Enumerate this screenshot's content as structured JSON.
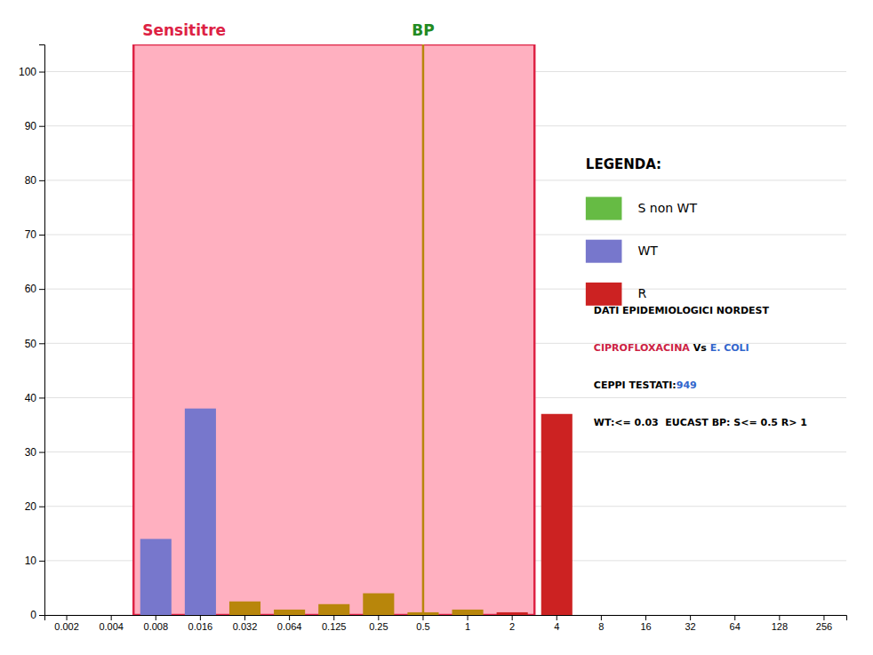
{
  "chart_data": {
    "type": "bar",
    "categories": [
      "0.002",
      "0.004",
      "0.008",
      "0.016",
      "0.032",
      "0.064",
      "0.125",
      "0.25",
      "0.5",
      "1",
      "2",
      "4",
      "8",
      "16",
      "32",
      "64",
      "128",
      "256"
    ],
    "values": [
      0,
      0,
      14,
      38,
      2.5,
      1,
      2,
      4,
      0.5,
      1,
      0.5,
      37,
      0,
      0,
      0,
      0,
      0,
      0
    ],
    "colors": [
      "#7777cc",
      "#7777cc",
      "#7777cc",
      "#7777cc",
      "#b8860b",
      "#b8860b",
      "#b8860b",
      "#b8860b",
      "#b8860b",
      "#b8860b",
      "#cc2222",
      "#cc2222",
      "#cc2222",
      "#cc2222",
      "#cc2222",
      "#cc2222",
      "#cc2222",
      "#cc2222"
    ],
    "ylim": [
      0,
      105
    ],
    "yticks": [
      0,
      10,
      20,
      30,
      40,
      50,
      60,
      70,
      80,
      90,
      100
    ],
    "grid": true,
    "legend": "upper right",
    "legend_title": "LEGENDA:",
    "legend_entries": [
      {
        "name": "S non WT",
        "color": "#66bb44"
      },
      {
        "name": "WT",
        "color": "#7777cc"
      },
      {
        "name": "R",
        "color": "#cc2222"
      }
    ],
    "annotations": [
      {
        "text": "BP",
        "category": "0.5",
        "color": "#228B22",
        "line_color": "#b8860b"
      },
      {
        "text": "Sensititre",
        "from": "0.008",
        "to": "2",
        "color": "#dd2244",
        "fill": "#ffb0c0",
        "border": "#dd2244"
      }
    ],
    "notes": [
      [
        {
          "text": "DATI EPIDEMIOLOGICI NORDEST",
          "color": "#000000"
        }
      ],
      [
        {
          "text": "CIPROFLOXACINA",
          "color": "#cc2244"
        },
        {
          "text": " Vs ",
          "color": "#000000"
        },
        {
          "text": "E. COLI",
          "color": "#3366cc"
        }
      ],
      [
        {
          "text": "CEPPI TESTATI:",
          "color": "#000000"
        },
        {
          "text": "949",
          "color": "#3366cc"
        }
      ],
      [
        {
          "text": "WT:<= 0.03  EUCAST BP: S<= 0.5 R> 1",
          "color": "#000000"
        }
      ]
    ]
  }
}
